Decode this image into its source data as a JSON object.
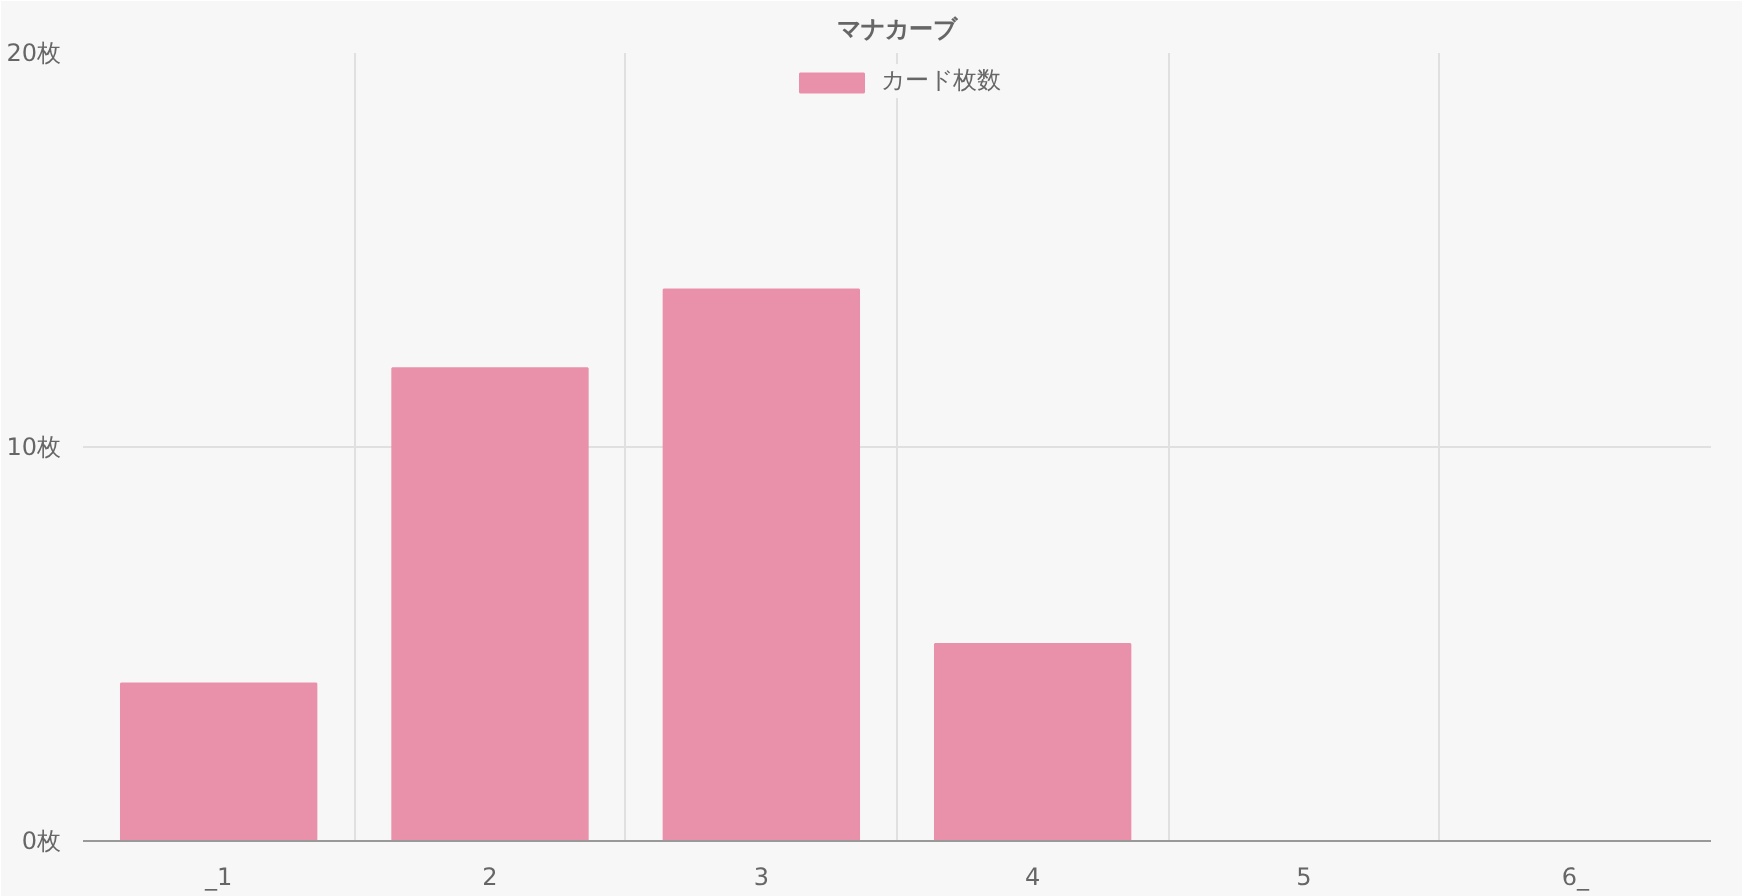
{
  "chart_data": {
    "type": "bar",
    "title": "マナカーブ",
    "categories": [
      "_1",
      "2",
      "3",
      "4",
      "5",
      "6_"
    ],
    "series": [
      {
        "name": "カード枚数",
        "color": "#e991aa",
        "values": [
          4,
          12,
          14,
          5,
          0,
          0
        ]
      }
    ],
    "ylim": [
      0,
      20
    ],
    "yticks": [
      {
        "value": 0,
        "label": "0枚"
      },
      {
        "value": 10,
        "label": "10枚"
      },
      {
        "value": 20,
        "label": "20枚"
      }
    ],
    "grid": true,
    "legend": "top"
  }
}
